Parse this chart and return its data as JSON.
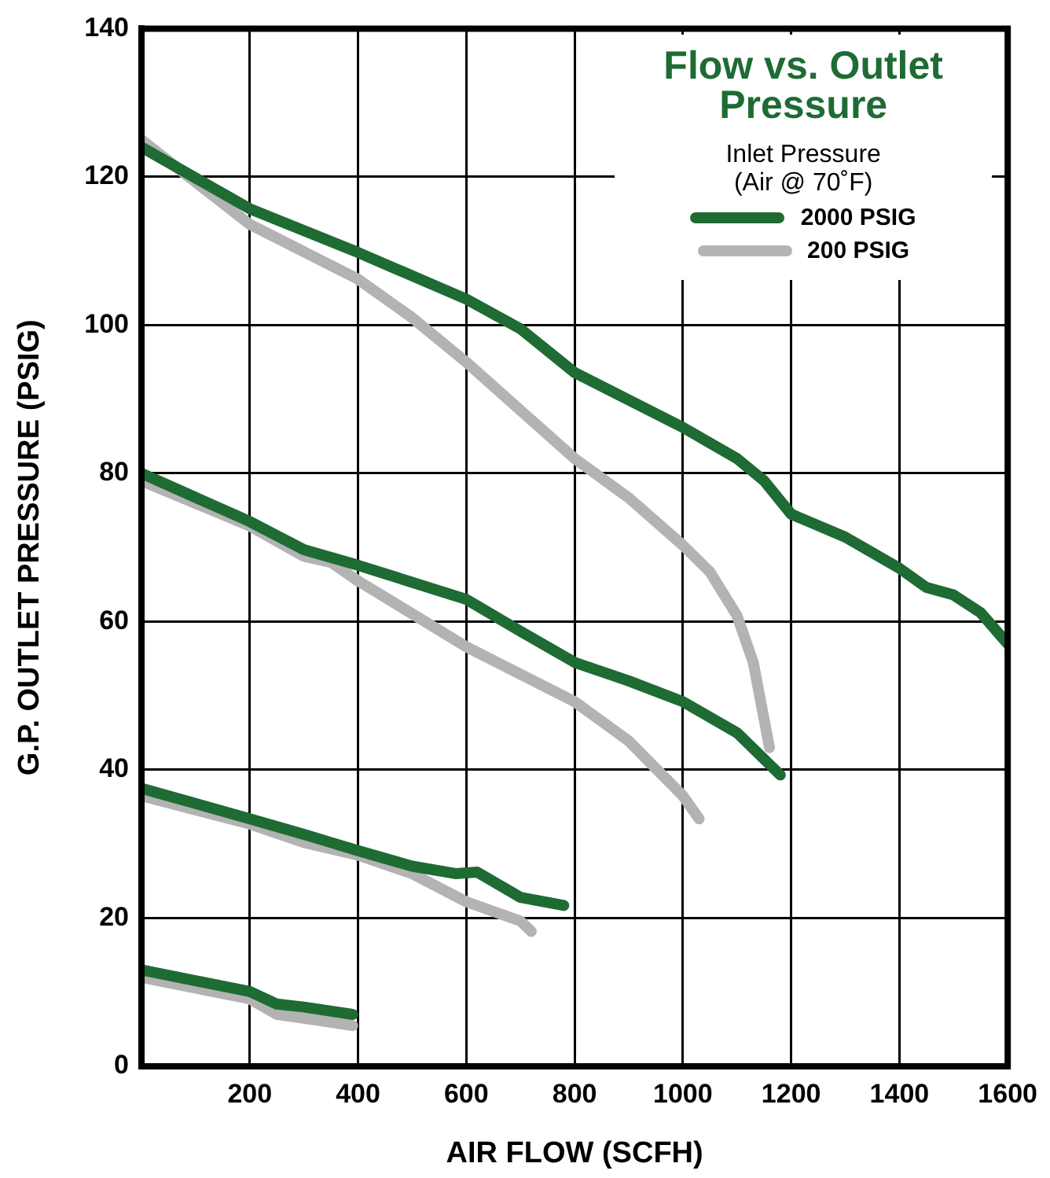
{
  "chart_data": {
    "type": "line",
    "title": "Flow vs. Outlet Pressure",
    "legend_title": "Inlet Pressure\n(Air @ 70˚F)",
    "xlabel": "AIR FLOW (SCFH)",
    "ylabel": "G.P. OUTLET PRESSURE (PSIG)",
    "xlim": [
      0,
      1600
    ],
    "xticks": [
      {
        "value": 0,
        "label": null
      },
      200,
      400,
      600,
      800,
      1000,
      1200,
      1400,
      1600
    ],
    "ylim": [
      0,
      140
    ],
    "yticks": [
      0,
      20,
      40,
      60,
      80,
      100,
      120,
      140
    ],
    "grid": true,
    "legend": "top right",
    "marker": "none",
    "line_style": "solid",
    "series": [
      {
        "name": "2000 PSIG",
        "color": "#1e6b34",
        "x": [
          0,
          200,
          400,
          600,
          700,
          800,
          1000,
          1100,
          1150,
          1200,
          1300,
          1400,
          1450,
          1500,
          1550,
          1600
        ],
        "values": [
          124,
          115.7,
          109.8,
          103.5,
          99.5,
          93.6,
          86.2,
          82,
          79,
          74.5,
          71.4,
          67.2,
          64.6,
          63.6,
          61.2,
          57
        ]
      },
      {
        "name": "200 PSIG",
        "color": "#b3b3b3",
        "x": [
          0,
          200,
          400,
          500,
          600,
          800,
          900,
          1000,
          1050,
          1100,
          1130,
          1160
        ],
        "values": [
          125,
          113.6,
          106.2,
          101,
          95,
          82,
          76.7,
          70.3,
          66.7,
          60.8,
          54.5,
          43
        ]
      },
      {
        "color": "#1e6b34",
        "x": [
          0,
          200,
          300,
          400,
          600,
          700,
          800,
          900,
          1000,
          1100,
          1180
        ],
        "values": [
          80,
          73.5,
          69.7,
          67.6,
          63,
          58.7,
          54.5,
          52,
          49.2,
          45,
          39.3
        ]
      },
      {
        "color": "#b3b3b3",
        "x": [
          0,
          200,
          300,
          350,
          400,
          600,
          800,
          900,
          1000,
          1030
        ],
        "values": [
          79,
          72.9,
          68.8,
          68,
          65.5,
          56.6,
          49.2,
          43.9,
          36.5,
          33.4
        ]
      },
      {
        "color": "#1e6b34",
        "x": [
          0,
          200,
          300,
          350,
          400,
          500,
          580,
          620,
          700,
          780
        ],
        "values": [
          37.5,
          33.4,
          31.3,
          30.2,
          29.1,
          27,
          26,
          26.2,
          22.8,
          21.7
        ]
      },
      {
        "color": "#b3b3b3",
        "x": [
          0,
          200,
          300,
          400,
          500,
          600,
          700,
          720
        ],
        "values": [
          36.5,
          32.7,
          30.2,
          28.5,
          26,
          22.2,
          19.6,
          18.2
        ]
      },
      {
        "color": "#1e6b34",
        "x": [
          0,
          200,
          250,
          300,
          390
        ],
        "values": [
          13,
          10.1,
          8.4,
          8,
          7
        ]
      },
      {
        "color": "#b3b3b3",
        "x": [
          0,
          200,
          250,
          300,
          390
        ],
        "values": [
          12,
          9.1,
          7,
          6.5,
          5.5
        ]
      }
    ]
  }
}
